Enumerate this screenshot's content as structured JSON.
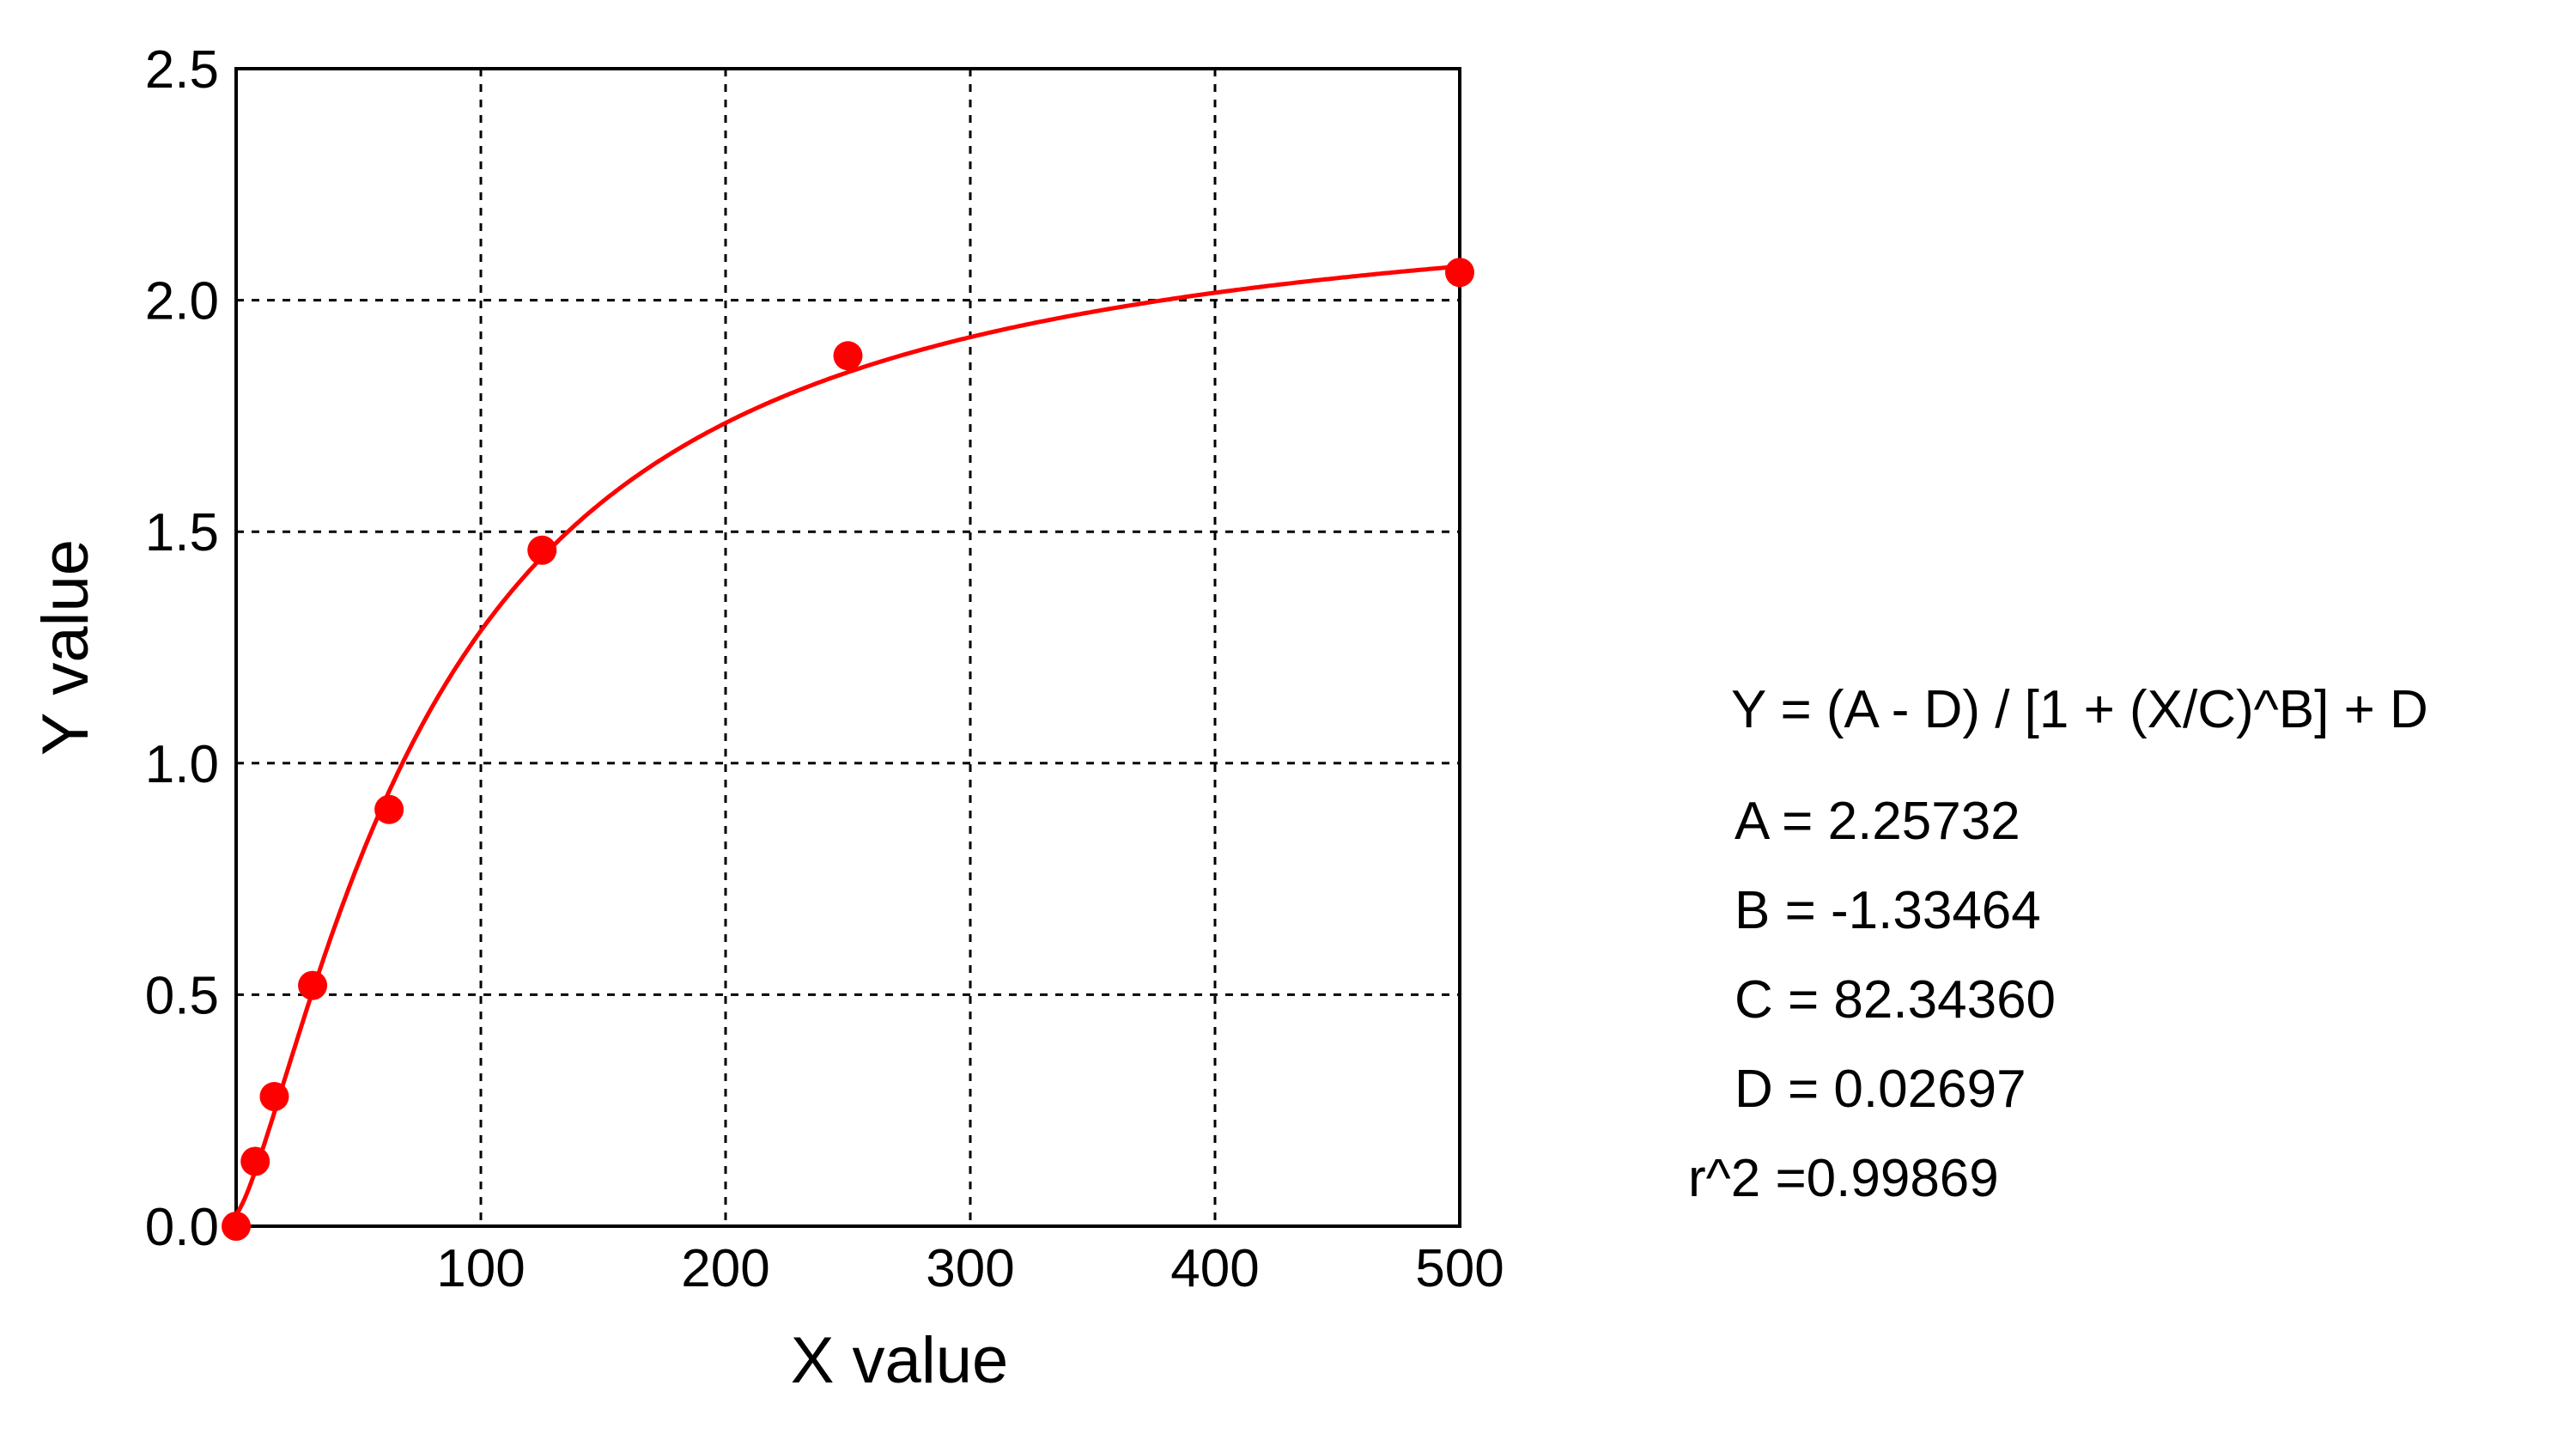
{
  "chart_data": {
    "type": "scatter",
    "xlabel": "X value",
    "ylabel": "Y value",
    "xlim": [
      0,
      500
    ],
    "ylim": [
      0,
      2.5
    ],
    "x_ticks": [
      "100",
      "200",
      "300",
      "400",
      "500"
    ],
    "y_ticks": [
      "0.0",
      "0.5",
      "1.0",
      "1.5",
      "2.0",
      "2.5"
    ],
    "grid": true,
    "series": [
      {
        "points": [
          {
            "x": 0,
            "y": 0.0
          },
          {
            "x": 7.8,
            "y": 0.14
          },
          {
            "x": 15.6,
            "y": 0.28
          },
          {
            "x": 31.25,
            "y": 0.52
          },
          {
            "x": 62.5,
            "y": 0.9
          },
          {
            "x": 125,
            "y": 1.46
          },
          {
            "x": 250,
            "y": 1.88
          },
          {
            "x": 500,
            "y": 2.06
          }
        ],
        "color": "#ff0000"
      }
    ],
    "fit": {
      "A": 2.25732,
      "B": -1.33464,
      "C": 82.3436,
      "D": 0.02697,
      "color": "#ff0000"
    }
  },
  "equation": {
    "formula": "Y = (A - D) / [1 + (X/C)^B] + D",
    "a": "A = 2.25732",
    "b": "B = -1.33464",
    "c": "C = 82.34360",
    "d": "D = 0.02697",
    "r2": "r^2 =0.99869"
  }
}
